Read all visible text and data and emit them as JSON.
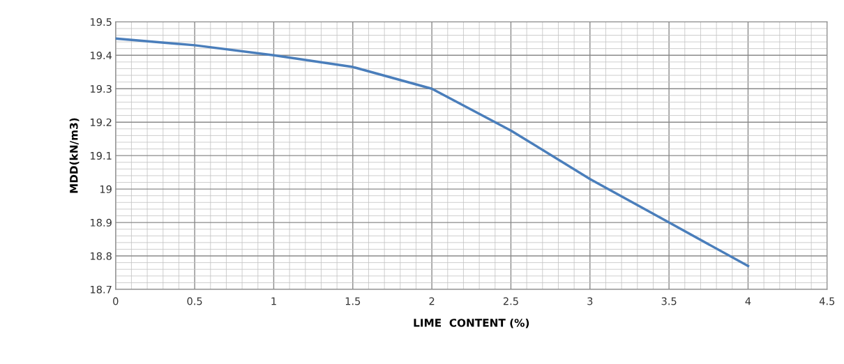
{
  "chart_data": {
    "type": "line",
    "xlabel": "LIME  CONTENT (%)",
    "ylabel": "MDD(kN/m3)",
    "x": [
      0,
      0.5,
      1,
      1.5,
      2,
      2.5,
      3,
      3.5,
      4
    ],
    "series": [
      {
        "color": "#4a7ebb",
        "values": [
          19.45,
          19.43,
          19.4,
          19.365,
          19.3,
          19.175,
          19.03,
          18.9,
          18.77
        ]
      }
    ],
    "xlim": [
      0,
      4.5
    ],
    "ylim": [
      18.7,
      19.5
    ],
    "xticks": [
      0,
      {
        "value": 0.1,
        "label": null
      },
      {
        "value": 0.2,
        "label": null
      },
      {
        "value": 0.3,
        "label": null
      },
      {
        "value": 0.4,
        "label": null
      },
      0.5,
      {
        "value": 0.6,
        "label": null
      },
      {
        "value": 0.7,
        "label": null
      },
      {
        "value": 0.8,
        "label": null
      },
      {
        "value": 0.9,
        "label": null
      },
      1,
      {
        "value": 1.1,
        "label": null
      },
      {
        "value": 1.2,
        "label": null
      },
      {
        "value": 1.3,
        "label": null
      },
      {
        "value": 1.4,
        "label": null
      },
      1.5,
      {
        "value": 1.6,
        "label": null
      },
      {
        "value": 1.7,
        "label": null
      },
      {
        "value": 1.8,
        "label": null
      },
      {
        "value": 1.9,
        "label": null
      },
      2,
      {
        "value": 2.1,
        "label": null
      },
      {
        "value": 2.2,
        "label": null
      },
      {
        "value": 2.3,
        "label": null
      },
      {
        "value": 2.4,
        "label": null
      },
      2.5,
      {
        "value": 2.6,
        "label": null
      },
      {
        "value": 2.7,
        "label": null
      },
      {
        "value": 2.8,
        "label": null
      },
      {
        "value": 2.9,
        "label": null
      },
      3,
      {
        "value": 3.1,
        "label": null
      },
      {
        "value": 3.2,
        "label": null
      },
      {
        "value": 3.3,
        "label": null
      },
      {
        "value": 3.4,
        "label": null
      },
      3.5,
      {
        "value": 3.6,
        "label": null
      },
      {
        "value": 3.7,
        "label": null
      },
      {
        "value": 3.8,
        "label": null
      },
      {
        "value": 3.9,
        "label": null
      },
      4,
      {
        "value": 4.1,
        "label": null
      },
      {
        "value": 4.2,
        "label": null
      },
      {
        "value": 4.3,
        "label": null
      },
      {
        "value": 4.4,
        "label": null
      },
      4.5
    ],
    "yticks": [
      18.7,
      {
        "value": 18.72,
        "label": null
      },
      {
        "value": 18.74,
        "label": null
      },
      {
        "value": 18.76,
        "label": null
      },
      {
        "value": 18.78,
        "label": null
      },
      18.8,
      {
        "value": 18.82,
        "label": null
      },
      {
        "value": 18.84,
        "label": null
      },
      {
        "value": 18.86,
        "label": null
      },
      {
        "value": 18.88,
        "label": null
      },
      18.9,
      {
        "value": 18.92,
        "label": null
      },
      {
        "value": 18.94,
        "label": null
      },
      {
        "value": 18.96,
        "label": null
      },
      {
        "value": 18.98,
        "label": null
      },
      19,
      {
        "value": 19.02,
        "label": null
      },
      {
        "value": 19.04,
        "label": null
      },
      {
        "value": 19.06,
        "label": null
      },
      {
        "value": 19.08,
        "label": null
      },
      19.1,
      {
        "value": 19.12,
        "label": null
      },
      {
        "value": 19.14,
        "label": null
      },
      {
        "value": 19.16,
        "label": null
      },
      {
        "value": 19.18,
        "label": null
      },
      19.2,
      {
        "value": 19.22,
        "label": null
      },
      {
        "value": 19.24,
        "label": null
      },
      {
        "value": 19.26,
        "label": null
      },
      {
        "value": 19.28,
        "label": null
      },
      19.3,
      {
        "value": 19.32,
        "label": null
      },
      {
        "value": 19.34,
        "label": null
      },
      {
        "value": 19.36,
        "label": null
      },
      {
        "value": 19.38,
        "label": null
      },
      19.4,
      {
        "value": 19.42,
        "label": null
      },
      {
        "value": 19.44,
        "label": null
      },
      {
        "value": 19.46,
        "label": null
      },
      {
        "value": 19.48,
        "label": null
      },
      19.5
    ],
    "grid": true,
    "marker": "none",
    "line_style": "solid"
  }
}
